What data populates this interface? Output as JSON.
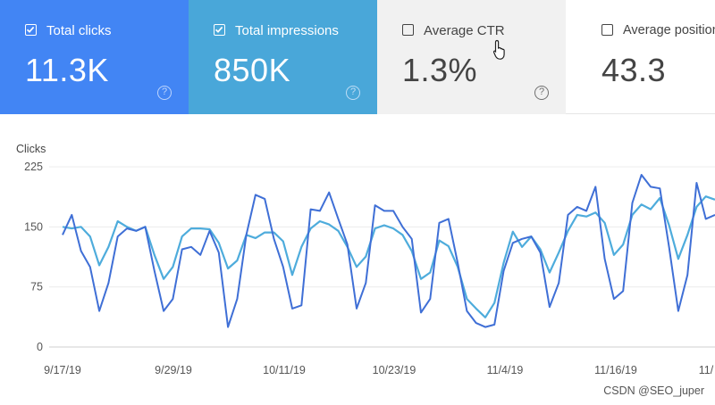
{
  "cards": [
    {
      "label": "Total clicks",
      "value": "11.3K",
      "checked": true
    },
    {
      "label": "Total impressions",
      "value": "850K",
      "checked": true
    },
    {
      "label": "Average CTR",
      "value": "1.3%",
      "checked": false
    },
    {
      "label": "Average position",
      "value": "43.3",
      "checked": false
    }
  ],
  "help_glyph": "?",
  "colors": {
    "clicks": "#3f6fd6",
    "impressions": "#4eacdc"
  },
  "chart_data": {
    "type": "line",
    "ylabel": "Clicks",
    "ylim": [
      0,
      225
    ],
    "yticks": [
      "225",
      "150",
      "75",
      "0"
    ],
    "xticks": [
      "9/17/19",
      "9/29/19",
      "10/11/19",
      "10/23/19",
      "11/4/19",
      "11/16/19",
      "11/"
    ],
    "series": [
      {
        "name": "Total clicks",
        "values": [
          140,
          165,
          120,
          100,
          45,
          80,
          138,
          148,
          145,
          150,
          95,
          45,
          60,
          122,
          125,
          115,
          145,
          118,
          25,
          60,
          140,
          190,
          185,
          135,
          100,
          48,
          52,
          172,
          170,
          193,
          160,
          128,
          48,
          80,
          177,
          170,
          170,
          150,
          135,
          43,
          60,
          155,
          160,
          105,
          45,
          30,
          25,
          28,
          95,
          130,
          135,
          138,
          118,
          50,
          80,
          165,
          175,
          170,
          200,
          110,
          60,
          70,
          180,
          215,
          200,
          198,
          125,
          45,
          90,
          205,
          160,
          165
        ]
      },
      {
        "name": "Total impressions",
        "values": [
          150,
          148,
          150,
          138,
          102,
          125,
          157,
          150,
          145,
          150,
          115,
          85,
          100,
          138,
          148,
          148,
          147,
          130,
          98,
          108,
          140,
          136,
          143,
          143,
          132,
          90,
          125,
          148,
          157,
          153,
          145,
          125,
          100,
          113,
          148,
          152,
          148,
          140,
          120,
          85,
          93,
          133,
          126,
          100,
          60,
          48,
          37,
          55,
          105,
          144,
          125,
          138,
          122,
          93,
          118,
          145,
          165,
          163,
          168,
          155,
          115,
          128,
          165,
          178,
          172,
          186,
          152,
          110,
          140,
          175,
          188,
          184
        ]
      }
    ]
  },
  "watermark": "CSDN @SEO_juper"
}
